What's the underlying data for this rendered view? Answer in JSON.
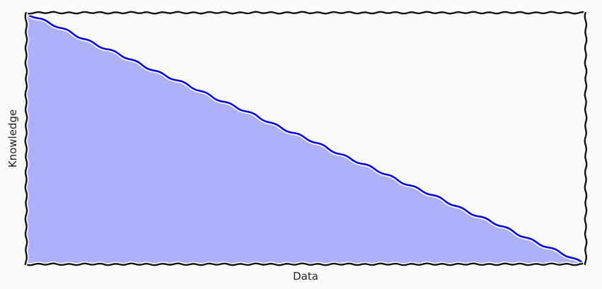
{
  "chart_data": {
    "type": "area",
    "title": "",
    "xlabel": "Data",
    "ylabel": "Knowledge",
    "x": [
      0,
      1
    ],
    "series": [
      {
        "values": [
          1,
          0
        ]
      }
    ],
    "xlim": [
      0,
      1
    ],
    "ylim": [
      0,
      1
    ],
    "grid": false,
    "colors": {
      "line": "#0000dd",
      "fill": "#aeb0fa",
      "frame": "#111111",
      "background": "#fafafa"
    }
  }
}
